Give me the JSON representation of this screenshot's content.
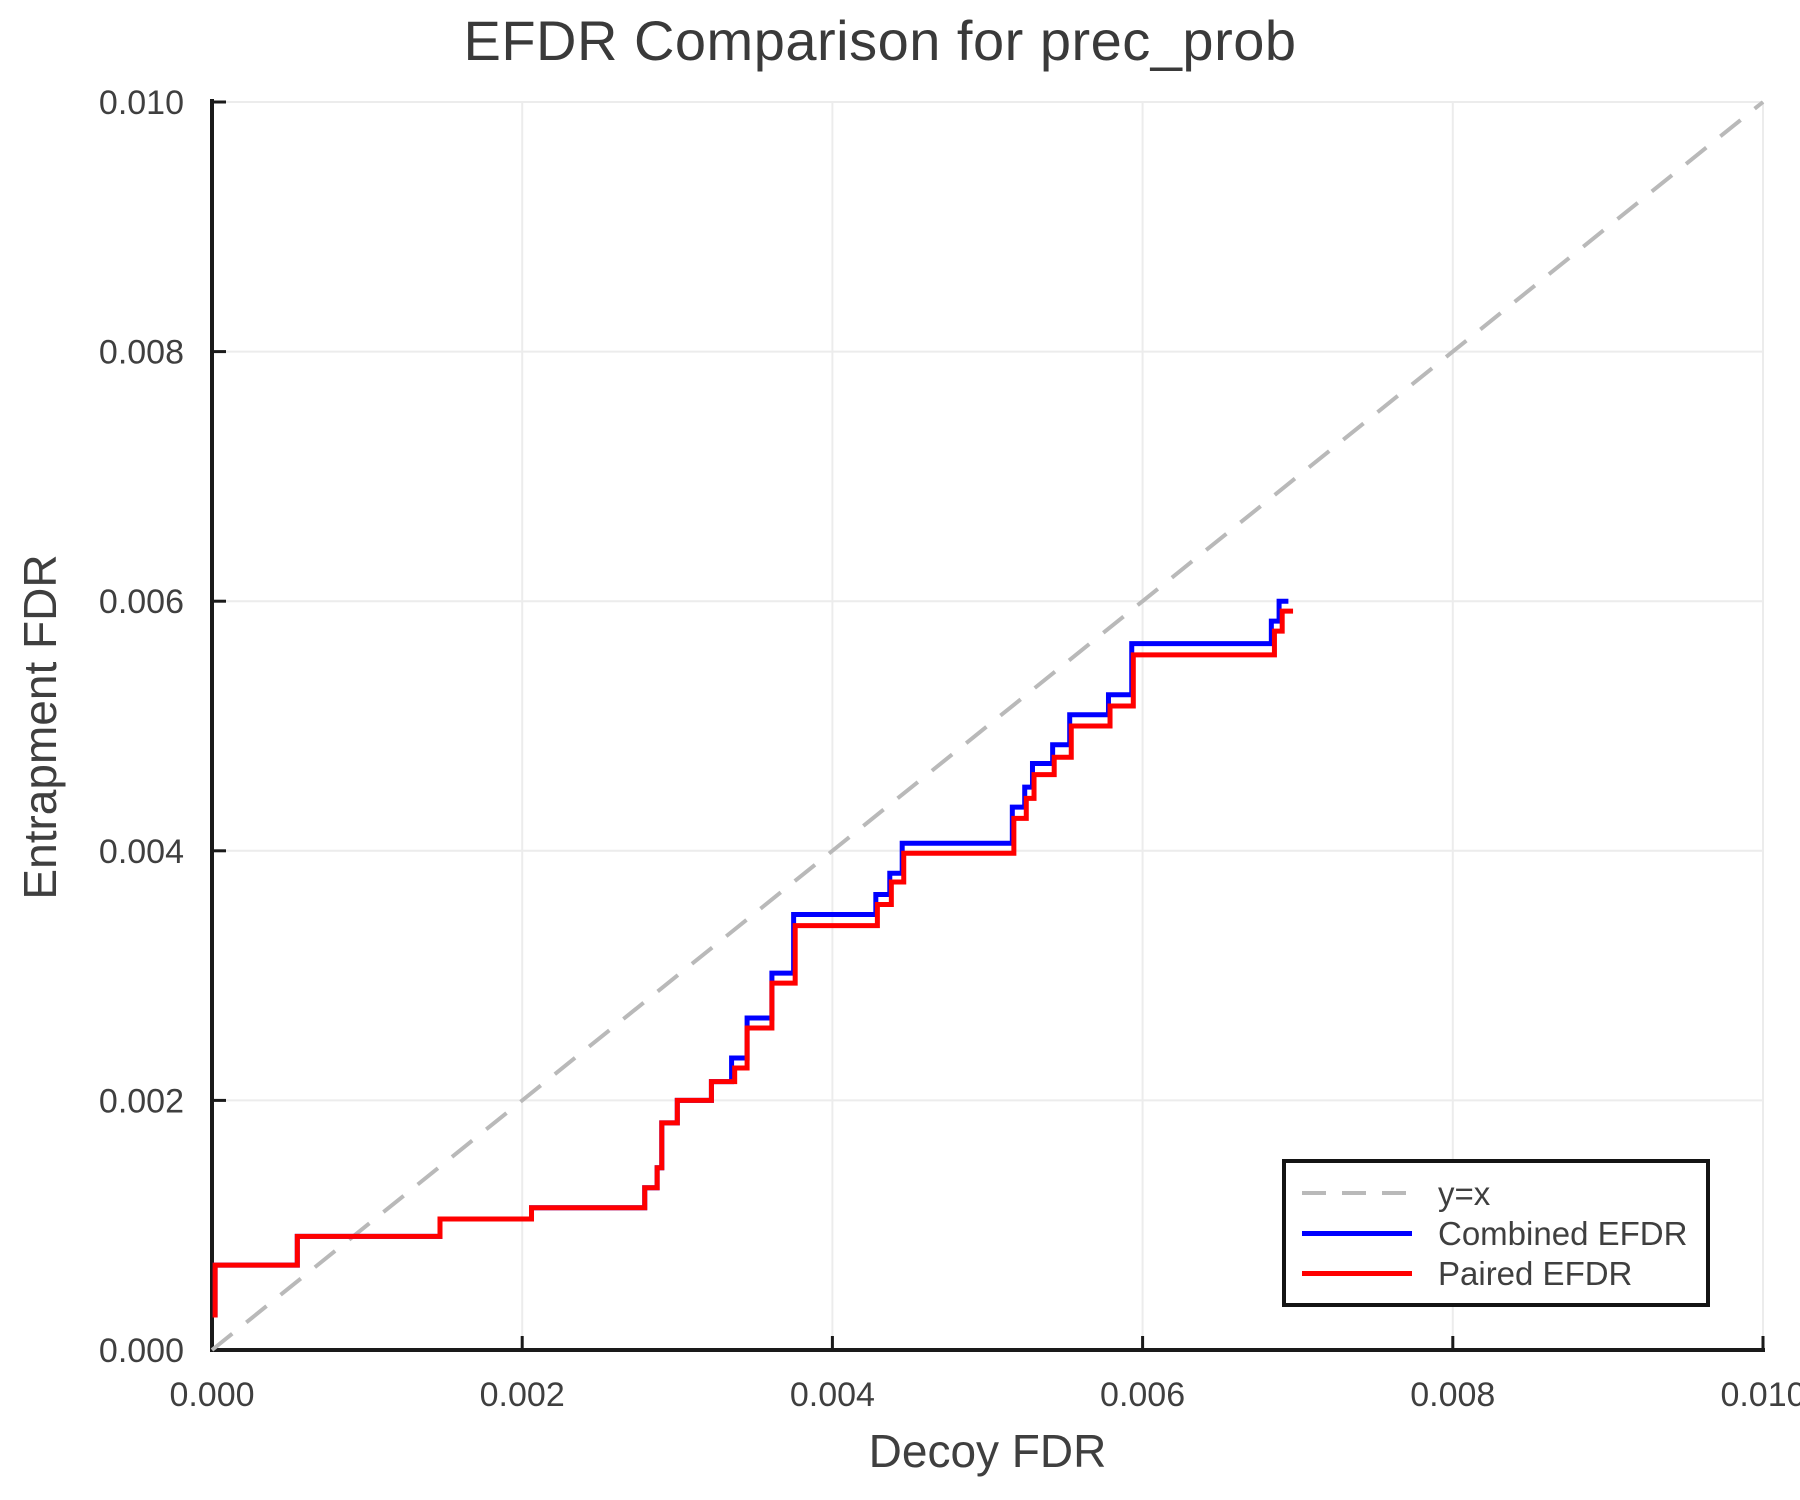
{
  "chart_data": {
    "type": "line",
    "title": "EFDR Comparison for prec_prob",
    "xlabel": "Decoy FDR",
    "ylabel": "Entrapment FDR",
    "xlim": [
      0.0,
      0.01
    ],
    "ylim": [
      0.0,
      0.01
    ],
    "grid": true,
    "grid_color": "#ececec",
    "spine_color": "#1a1a1a",
    "text_color": "#3f3f3f",
    "legend_position": "lower right",
    "xticks": {
      "values": [
        0.0,
        0.002,
        0.004,
        0.006,
        0.008,
        0.01
      ],
      "labels": [
        "0.000",
        "0.002",
        "0.004",
        "0.006",
        "0.008",
        "0.010"
      ]
    },
    "yticks": {
      "values": [
        0.0,
        0.002,
        0.004,
        0.006,
        0.008,
        0.01
      ],
      "labels": [
        "0.000",
        "0.002",
        "0.004",
        "0.006",
        "0.008",
        "0.010"
      ]
    },
    "series": [
      {
        "name": "y=x",
        "style": "dashed",
        "color": "#b9b9b9",
        "points": [
          [
            0.0,
            0.0
          ],
          [
            0.01,
            0.01
          ]
        ]
      },
      {
        "name": "Combined EFDR",
        "style": "steps",
        "color": "#0000ff",
        "x_end": 0.00694,
        "points": [
          [
            2e-05,
            0.00026
          ],
          [
            2e-05,
            0.00068
          ],
          [
            0.00055,
            0.00091
          ],
          [
            0.00147,
            0.00105
          ],
          [
            0.00206,
            0.00114
          ],
          [
            0.00279,
            0.0013
          ],
          [
            0.00287,
            0.00146
          ],
          [
            0.0029,
            0.00182
          ],
          [
            0.003,
            0.002
          ],
          [
            0.00322,
            0.00215
          ],
          [
            0.00335,
            0.00234
          ],
          [
            0.00345,
            0.00266
          ],
          [
            0.00361,
            0.00302
          ],
          [
            0.00375,
            0.00349
          ],
          [
            0.00428,
            0.00365
          ],
          [
            0.00437,
            0.00382
          ],
          [
            0.00445,
            0.00406
          ],
          [
            0.00516,
            0.00435
          ],
          [
            0.00524,
            0.00451
          ],
          [
            0.00529,
            0.0047
          ],
          [
            0.00542,
            0.00485
          ],
          [
            0.00553,
            0.00509
          ],
          [
            0.00578,
            0.00525
          ],
          [
            0.00593,
            0.00566
          ],
          [
            0.00683,
            0.00584
          ],
          [
            0.00688,
            0.006
          ]
        ]
      },
      {
        "name": "Paired EFDR",
        "style": "steps",
        "color": "#ff0000",
        "x_end": 0.00697,
        "points": [
          [
            2e-05,
            0.00026
          ],
          [
            2e-05,
            0.00068
          ],
          [
            0.00055,
            0.00091
          ],
          [
            0.00147,
            0.00105
          ],
          [
            0.00206,
            0.00114
          ],
          [
            0.00279,
            0.0013
          ],
          [
            0.00287,
            0.00146
          ],
          [
            0.0029,
            0.00182
          ],
          [
            0.003,
            0.002
          ],
          [
            0.00322,
            0.00215
          ],
          [
            0.00337,
            0.00226
          ],
          [
            0.00345,
            0.00258
          ],
          [
            0.00361,
            0.00294
          ],
          [
            0.00376,
            0.0034
          ],
          [
            0.00429,
            0.00357
          ],
          [
            0.00438,
            0.00375
          ],
          [
            0.00446,
            0.00398
          ],
          [
            0.00517,
            0.00426
          ],
          [
            0.00525,
            0.00442
          ],
          [
            0.0053,
            0.00461
          ],
          [
            0.00543,
            0.00475
          ],
          [
            0.00554,
            0.005
          ],
          [
            0.00579,
            0.00516
          ],
          [
            0.00594,
            0.00557
          ],
          [
            0.00685,
            0.00576
          ],
          [
            0.0069,
            0.00592
          ]
        ]
      }
    ]
  }
}
